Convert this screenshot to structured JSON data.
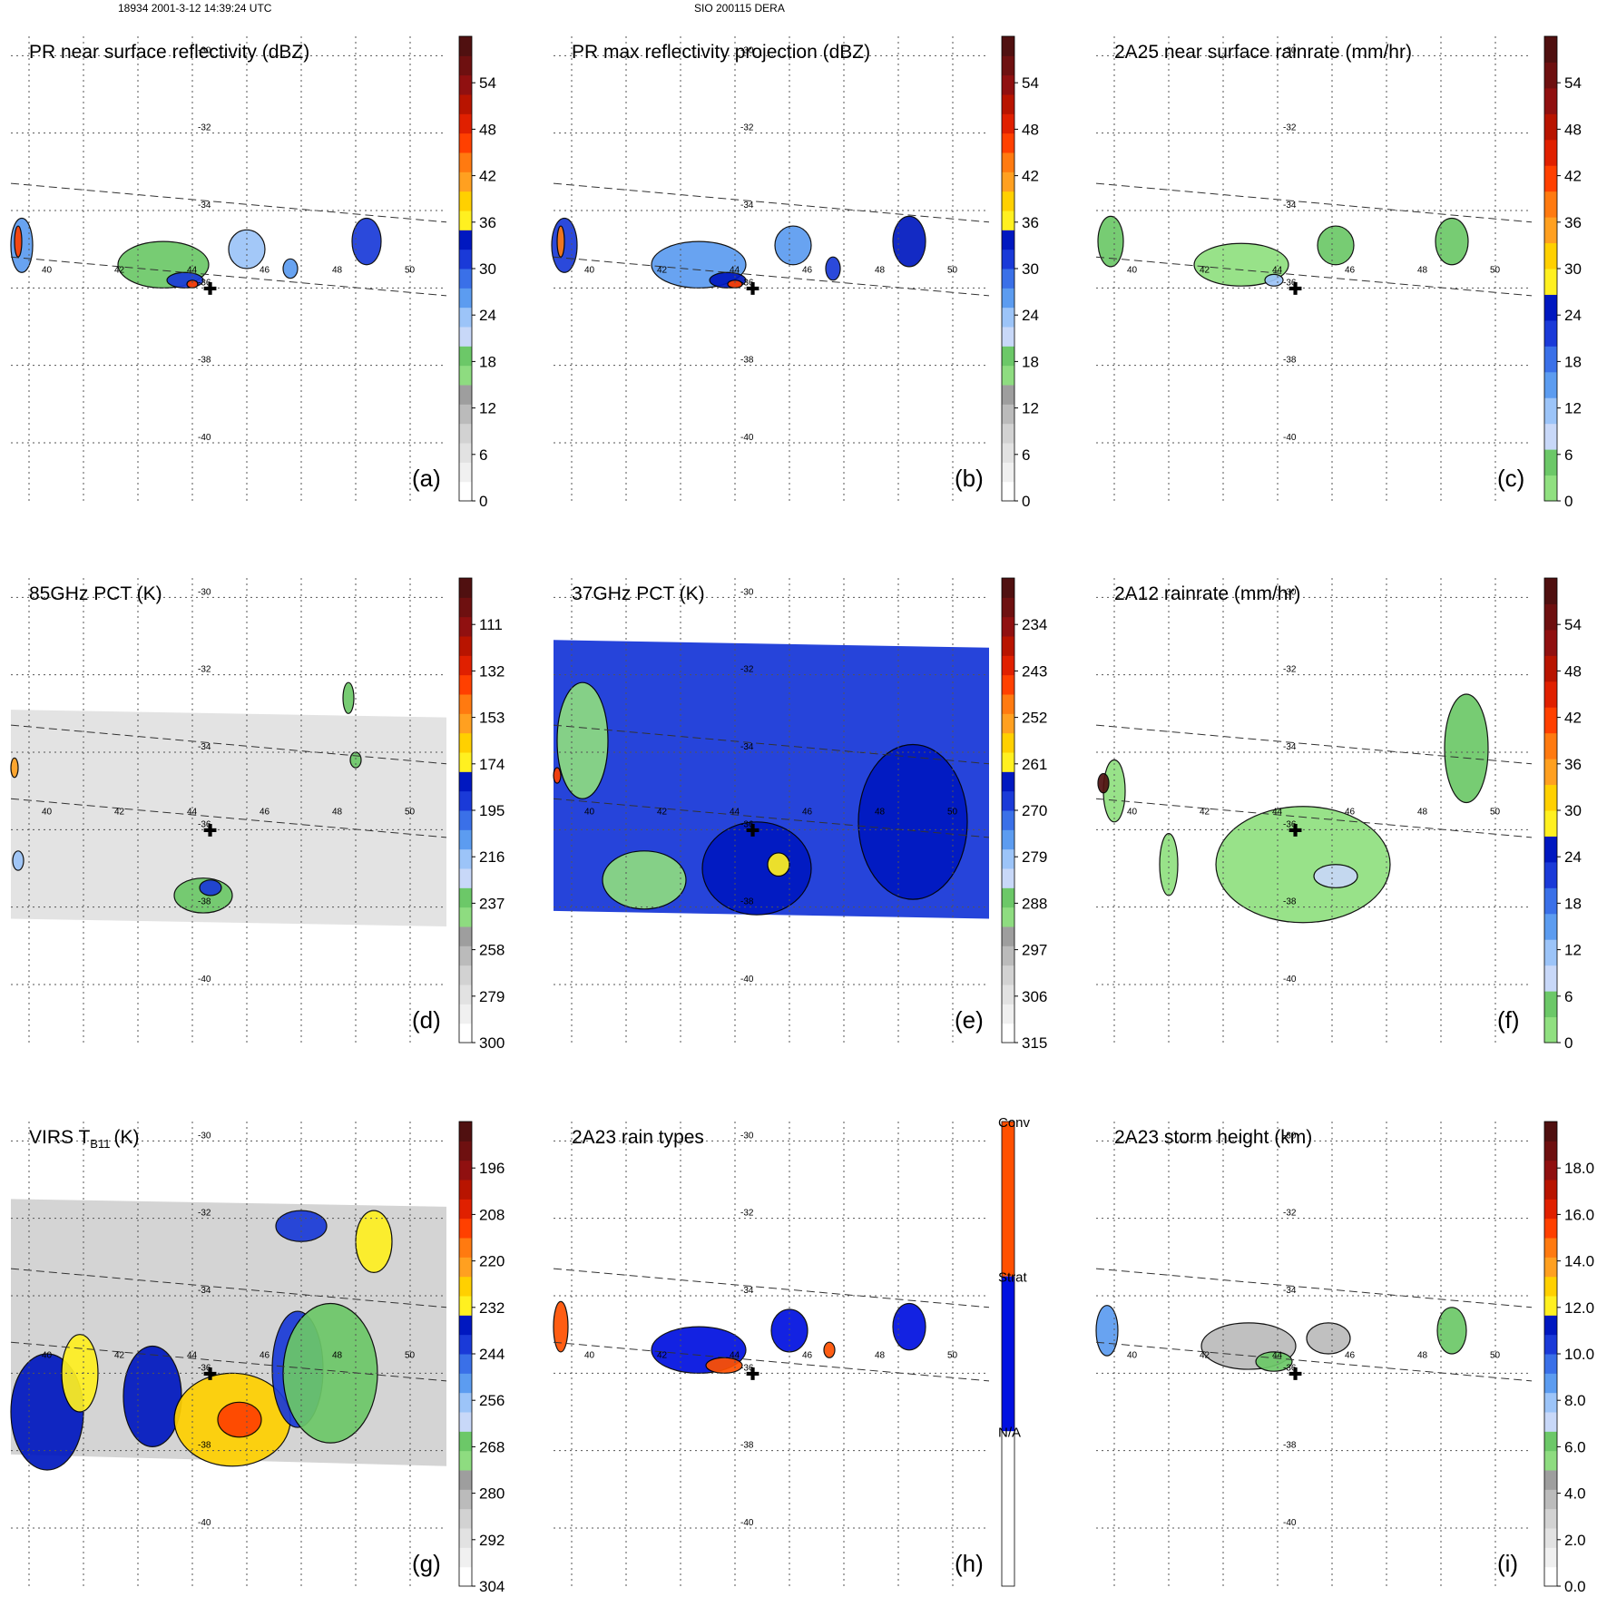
{
  "header": {
    "left": "18934 2001-3-12 14:39:24 UTC",
    "center": "SIO 200115 DERA"
  },
  "lon_labels": [
    "40",
    "42",
    "44",
    "46",
    "48",
    "50"
  ],
  "lat_labels": [
    "-30",
    "-32",
    "-34",
    "-36",
    "-38",
    "-40"
  ],
  "rain_type_labels": [
    "Conv",
    "Strat",
    "N/A"
  ],
  "center_marker": {
    "lon": 44.5,
    "lat": -36.0,
    "symbol": "✚"
  },
  "palettes": {
    "refl": [
      "#ffffff",
      "#f0f0f0",
      "#e2e2e2",
      "#d2d2d2",
      "#bbbbbb",
      "#9e9e9e",
      "#8edc80",
      "#6cc868",
      "#c8d8f8",
      "#9cc4f8",
      "#5c9cf0",
      "#3a70e8",
      "#1a3ad8",
      "#0018c0",
      "#fff020",
      "#ffd000",
      "#ffa020",
      "#ff7a10",
      "#ff4000",
      "#e02000",
      "#b81400",
      "#901010",
      "#6e1010",
      "#501010"
    ],
    "rain": [
      "#90e080",
      "#6cc868",
      "#c8d8f8",
      "#9cc4f8",
      "#5c9cf0",
      "#3a70e8",
      "#1a3ad8",
      "#0018c0",
      "#fff020",
      "#ffd000",
      "#ffa020",
      "#ff7a10",
      "#ff4000",
      "#e02000",
      "#b81400",
      "#901010",
      "#6e1010",
      "#501010"
    ],
    "rtype": [
      "#ffffff",
      "#0010e0",
      "#ff5000"
    ]
  },
  "chart_data": [
    {
      "panel": "a",
      "type": "heatmap",
      "title": "PR near surface reflectivity (dBZ)",
      "tag": "(a)",
      "colorbar": {
        "ticks": [
          "0",
          "6",
          "12",
          "18",
          "24",
          "30",
          "36",
          "42",
          "48",
          "54"
        ],
        "palette": "refl"
      },
      "swath": true,
      "echoes": [
        {
          "lon": 39.3,
          "lat": -34.9,
          "w": 0.6,
          "h": 1.4,
          "level": 0.45
        },
        {
          "lon": 39.2,
          "lat": -34.8,
          "w": 0.2,
          "h": 0.8,
          "level": 0.75
        },
        {
          "lon": 43.2,
          "lat": -35.4,
          "w": 2.5,
          "h": 1.2,
          "level": 0.32
        },
        {
          "lon": 43.8,
          "lat": -35.8,
          "w": 1.0,
          "h": 0.4,
          "level": 0.5
        },
        {
          "lon": 44.0,
          "lat": -35.9,
          "w": 0.3,
          "h": 0.2,
          "level": 0.75
        },
        {
          "lon": 45.5,
          "lat": -35.0,
          "w": 1.0,
          "h": 1.0,
          "level": 0.4
        },
        {
          "lon": 46.7,
          "lat": -35.5,
          "w": 0.4,
          "h": 0.5,
          "level": 0.45
        },
        {
          "lon": 48.8,
          "lat": -34.8,
          "w": 0.8,
          "h": 1.2,
          "level": 0.5
        }
      ]
    },
    {
      "panel": "b",
      "type": "heatmap",
      "title": "PR max reflectivity projection (dBZ)",
      "tag": "(b)",
      "colorbar": {
        "ticks": [
          "0",
          "6",
          "12",
          "18",
          "24",
          "30",
          "36",
          "42",
          "48",
          "54"
        ],
        "palette": "refl"
      },
      "swath": true,
      "echoes": [
        {
          "lon": 39.3,
          "lat": -34.9,
          "w": 0.7,
          "h": 1.4,
          "level": 0.5
        },
        {
          "lon": 39.2,
          "lat": -34.8,
          "w": 0.2,
          "h": 0.8,
          "level": 0.72
        },
        {
          "lon": 43.0,
          "lat": -35.4,
          "w": 2.6,
          "h": 1.2,
          "level": 0.42
        },
        {
          "lon": 43.8,
          "lat": -35.8,
          "w": 1.0,
          "h": 0.4,
          "level": 0.55
        },
        {
          "lon": 44.0,
          "lat": -35.9,
          "w": 0.4,
          "h": 0.2,
          "level": 0.75
        },
        {
          "lon": 45.6,
          "lat": -34.9,
          "w": 1.0,
          "h": 1.0,
          "level": 0.45
        },
        {
          "lon": 46.7,
          "lat": -35.5,
          "w": 0.4,
          "h": 0.6,
          "level": 0.5
        },
        {
          "lon": 48.8,
          "lat": -34.8,
          "w": 0.9,
          "h": 1.3,
          "level": 0.55
        }
      ]
    },
    {
      "panel": "c",
      "type": "heatmap",
      "title": "2A25 near surface rainrate (mm/hr)",
      "tag": "(c)",
      "colorbar": {
        "ticks": [
          "0",
          "6",
          "12",
          "18",
          "24",
          "30",
          "36",
          "42",
          "48",
          "54"
        ],
        "palette": "rain"
      },
      "swath": true,
      "echoes": [
        {
          "lon": 39.4,
          "lat": -34.8,
          "w": 0.7,
          "h": 1.3,
          "level": 0.06
        },
        {
          "lon": 43.0,
          "lat": -35.4,
          "w": 2.6,
          "h": 1.1,
          "level": 0.05
        },
        {
          "lon": 45.6,
          "lat": -34.9,
          "w": 1.0,
          "h": 1.0,
          "level": 0.06
        },
        {
          "lon": 48.8,
          "lat": -34.8,
          "w": 0.9,
          "h": 1.2,
          "level": 0.08
        },
        {
          "lon": 43.9,
          "lat": -35.8,
          "w": 0.5,
          "h": 0.3,
          "level": 0.2
        }
      ]
    },
    {
      "panel": "d",
      "type": "heatmap",
      "title": "85GHz PCT (K)",
      "tag": "(d)",
      "colorbar": {
        "ticks": [
          "300",
          "279",
          "258",
          "237",
          "216",
          "195",
          "174",
          "153",
          "132",
          "111"
        ],
        "palette": "refl"
      },
      "field": {
        "background_level": 0.12,
        "lon_range": [
          39.0,
          51.0
        ],
        "lat_top": [
          -32.9,
          -33.1
        ],
        "lat_bottom": [
          -38.3,
          -38.5
        ]
      },
      "echoes": [
        {
          "lon": 44.3,
          "lat": -37.7,
          "w": 1.6,
          "h": 0.9,
          "level": 0.32
        },
        {
          "lon": 44.5,
          "lat": -37.5,
          "w": 0.6,
          "h": 0.4,
          "level": 0.5
        },
        {
          "lon": 48.3,
          "lat": -32.6,
          "w": 0.3,
          "h": 0.8,
          "level": 0.3
        },
        {
          "lon": 48.5,
          "lat": -34.2,
          "w": 0.3,
          "h": 0.4,
          "level": 0.3
        },
        {
          "lon": 39.1,
          "lat": -34.4,
          "w": 0.2,
          "h": 0.5,
          "level": 0.7
        },
        {
          "lon": 39.2,
          "lat": -36.8,
          "w": 0.3,
          "h": 0.5,
          "level": 0.4
        }
      ]
    },
    {
      "panel": "e",
      "type": "heatmap",
      "title": "37GHz PCT (K)",
      "tag": "(e)",
      "colorbar": {
        "ticks": [
          "315",
          "306",
          "297",
          "288",
          "279",
          "270",
          "261",
          "252",
          "243",
          "234"
        ],
        "palette": "refl"
      },
      "field": {
        "background_level": 0.52,
        "lon_range": [
          39.0,
          51.0
        ],
        "lat_top": [
          -31.1,
          -31.3
        ],
        "lat_bottom": [
          -38.1,
          -38.3
        ]
      },
      "echoes": [
        {
          "lon": 44.6,
          "lat": -37.0,
          "w": 3.0,
          "h": 2.4,
          "level": 0.58
        },
        {
          "lon": 45.2,
          "lat": -36.9,
          "w": 0.6,
          "h": 0.6,
          "level": 0.62
        },
        {
          "lon": 39.8,
          "lat": -33.7,
          "w": 1.4,
          "h": 3.0,
          "level": 0.28
        },
        {
          "lon": 41.5,
          "lat": -37.3,
          "w": 2.3,
          "h": 1.5,
          "level": 0.28
        },
        {
          "lon": 48.9,
          "lat": -35.8,
          "w": 3.0,
          "h": 4.0,
          "level": 0.57
        },
        {
          "lon": 39.1,
          "lat": -34.6,
          "w": 0.2,
          "h": 0.4,
          "level": 0.75
        }
      ]
    },
    {
      "panel": "f",
      "type": "heatmap",
      "title": "2A12 rainrate (mm/hr)",
      "tag": "(f)",
      "colorbar": {
        "ticks": [
          "0",
          "6",
          "12",
          "18",
          "24",
          "30",
          "36",
          "42",
          "48",
          "54"
        ],
        "palette": "rain"
      },
      "echoes": [
        {
          "lon": 44.7,
          "lat": -36.9,
          "w": 4.8,
          "h": 3.0,
          "level": 0.04
        },
        {
          "lon": 45.6,
          "lat": -37.2,
          "w": 1.2,
          "h": 0.6,
          "level": 0.15
        },
        {
          "lon": 49.2,
          "lat": -33.9,
          "w": 1.2,
          "h": 2.8,
          "level": 0.06
        },
        {
          "lon": 41.0,
          "lat": -36.9,
          "w": 0.5,
          "h": 1.6,
          "level": 0.04
        },
        {
          "lon": 39.5,
          "lat": -35.0,
          "w": 0.6,
          "h": 1.6,
          "level": 0.05
        },
        {
          "lon": 39.2,
          "lat": -34.8,
          "w": 0.3,
          "h": 0.5,
          "level": 1.0
        }
      ]
    },
    {
      "panel": "g",
      "type": "heatmap",
      "title": "VIRS T",
      "title_sub": "B11",
      "title_unit": "(K)",
      "tag": "(g)",
      "colorbar": {
        "ticks": [
          "304",
          "292",
          "280",
          "268",
          "256",
          "244",
          "232",
          "220",
          "208",
          "196"
        ],
        "palette": "refl"
      },
      "field": {
        "background_level": 0.15,
        "lon_range": [
          39.0,
          51.0
        ],
        "lat_top": [
          -31.5,
          -31.7
        ],
        "lat_bottom": [
          -38.1,
          -38.4
        ]
      },
      "echoes": [
        {
          "lon": 40.0,
          "lat": -37.0,
          "w": 2.0,
          "h": 3.0,
          "level": 0.58
        },
        {
          "lon": 40.9,
          "lat": -36.0,
          "w": 1.0,
          "h": 2.0,
          "level": 0.62
        },
        {
          "lon": 42.9,
          "lat": -36.6,
          "w": 1.6,
          "h": 2.6,
          "level": 0.55
        },
        {
          "lon": 45.1,
          "lat": -37.2,
          "w": 3.2,
          "h": 2.4,
          "level": 0.63
        },
        {
          "lon": 45.3,
          "lat": -37.2,
          "w": 1.2,
          "h": 0.9,
          "level": 0.78
        },
        {
          "lon": 46.9,
          "lat": -35.9,
          "w": 1.4,
          "h": 3.0,
          "level": 0.5
        },
        {
          "lon": 49.0,
          "lat": -32.6,
          "w": 1.0,
          "h": 1.6,
          "level": 0.62
        },
        {
          "lon": 47.0,
          "lat": -32.2,
          "w": 1.4,
          "h": 0.8,
          "level": 0.5
        },
        {
          "lon": 47.8,
          "lat": -36.0,
          "w": 2.6,
          "h": 3.6,
          "level": 0.3
        }
      ]
    },
    {
      "panel": "h",
      "type": "heatmap",
      "title": "2A23 rain types",
      "tag": "(h)",
      "colorbar": {
        "ticks": [],
        "palette": "rtype"
      },
      "swath": true,
      "echoes": [
        {
          "lon": 39.2,
          "lat": -34.8,
          "w": 0.4,
          "h": 1.3,
          "level": 0.85
        },
        {
          "lon": 43.0,
          "lat": -35.4,
          "w": 2.6,
          "h": 1.2,
          "level": 0.5
        },
        {
          "lon": 43.7,
          "lat": -35.8,
          "w": 1.0,
          "h": 0.4,
          "level": 0.85
        },
        {
          "lon": 45.5,
          "lat": -34.9,
          "w": 1.0,
          "h": 1.1,
          "level": 0.5
        },
        {
          "lon": 46.6,
          "lat": -35.4,
          "w": 0.3,
          "h": 0.4,
          "level": 0.85
        },
        {
          "lon": 48.8,
          "lat": -34.8,
          "w": 0.9,
          "h": 1.2,
          "level": 0.5
        }
      ]
    },
    {
      "panel": "i",
      "type": "heatmap",
      "title": "2A23 storm height (km)",
      "tag": "(i)",
      "colorbar": {
        "ticks": [
          "0.0",
          "2.0",
          "4.0",
          "6.0",
          "8.0",
          "10.0",
          "12.0",
          "14.0",
          "16.0",
          "18.0"
        ],
        "palette": "refl"
      },
      "swath": true,
      "echoes": [
        {
          "lon": 39.3,
          "lat": -34.9,
          "w": 0.6,
          "h": 1.3,
          "level": 0.45
        },
        {
          "lon": 43.2,
          "lat": -35.3,
          "w": 2.6,
          "h": 1.2,
          "level": 0.2
        },
        {
          "lon": 43.9,
          "lat": -35.7,
          "w": 1.0,
          "h": 0.5,
          "level": 0.32
        },
        {
          "lon": 45.4,
          "lat": -35.1,
          "w": 1.2,
          "h": 0.8,
          "level": 0.18
        },
        {
          "lon": 48.8,
          "lat": -34.9,
          "w": 0.8,
          "h": 1.2,
          "level": 0.3
        }
      ]
    }
  ]
}
